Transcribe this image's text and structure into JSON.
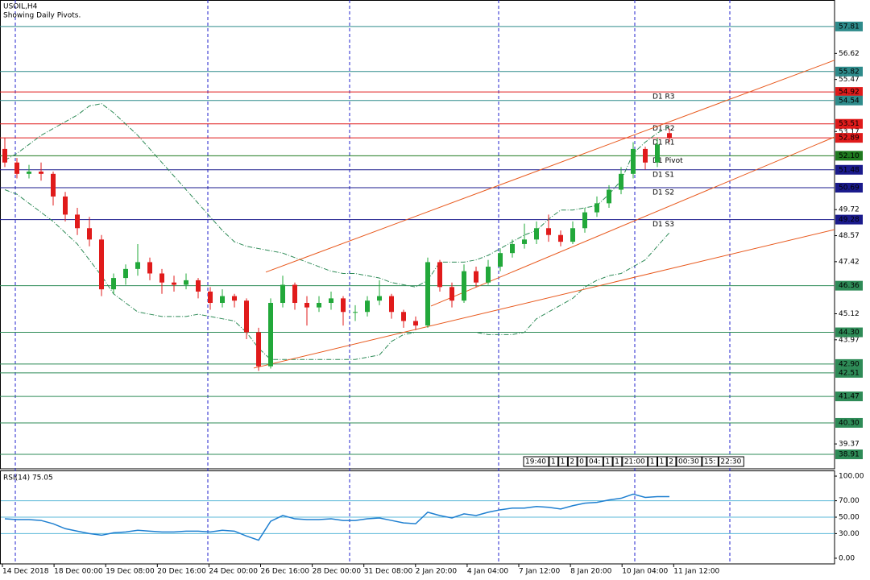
{
  "chart_data": {
    "type": "candlestick",
    "title": "USOIL,H4",
    "subtitle": "Showing Daily Pivots.",
    "ylim": [
      38.27,
      58.98
    ],
    "yticks": [
      56.62,
      55.47,
      53.17,
      49.72,
      48.57,
      47.42,
      45.12,
      43.97,
      39.37
    ],
    "up_color": "#22a83a",
    "down_color": "#e01b1b",
    "candles": [
      [
        52.4,
        52.9,
        51.6,
        51.8
      ],
      [
        51.8,
        52.0,
        51.1,
        51.3
      ],
      [
        51.3,
        51.7,
        51.1,
        51.4
      ],
      [
        51.4,
        51.8,
        51.0,
        51.3
      ],
      [
        51.3,
        51.4,
        49.9,
        50.3
      ],
      [
        50.3,
        50.5,
        49.2,
        49.5
      ],
      [
        49.5,
        49.8,
        48.6,
        48.9
      ],
      [
        48.9,
        49.4,
        48.1,
        48.4
      ],
      [
        48.4,
        48.6,
        45.9,
        46.2
      ],
      [
        46.2,
        46.9,
        46.0,
        46.7
      ],
      [
        46.7,
        47.3,
        46.4,
        47.1
      ],
      [
        47.1,
        48.2,
        46.8,
        47.4
      ],
      [
        47.4,
        47.6,
        46.6,
        46.9
      ],
      [
        46.9,
        47.1,
        46.0,
        46.5
      ],
      [
        46.5,
        46.8,
        46.1,
        46.4
      ],
      [
        46.4,
        46.9,
        46.2,
        46.6
      ],
      [
        46.6,
        46.7,
        45.8,
        46.1
      ],
      [
        46.1,
        46.3,
        45.3,
        45.6
      ],
      [
        45.6,
        46.2,
        45.4,
        45.9
      ],
      [
        45.9,
        46.0,
        45.4,
        45.7
      ],
      [
        45.7,
        45.8,
        44.0,
        44.3
      ],
      [
        44.3,
        44.5,
        42.6,
        42.8
      ],
      [
        42.8,
        45.8,
        42.7,
        45.6
      ],
      [
        45.6,
        46.8,
        45.4,
        46.4
      ],
      [
        46.4,
        46.5,
        45.3,
        45.6
      ],
      [
        45.6,
        45.9,
        44.6,
        45.4
      ],
      [
        45.4,
        45.9,
        45.2,
        45.6
      ],
      [
        45.6,
        46.1,
        45.3,
        45.8
      ],
      [
        45.8,
        45.9,
        44.6,
        45.2
      ],
      [
        45.2,
        45.5,
        44.8,
        45.2
      ],
      [
        45.2,
        45.9,
        45.0,
        45.7
      ],
      [
        45.7,
        46.6,
        45.5,
        45.9
      ],
      [
        45.9,
        46.0,
        44.9,
        45.2
      ],
      [
        45.2,
        45.3,
        44.5,
        44.8
      ],
      [
        44.8,
        45.0,
        44.4,
        44.6
      ],
      [
        44.6,
        47.6,
        44.5,
        47.4
      ],
      [
        47.4,
        47.5,
        46.1,
        46.3
      ],
      [
        46.3,
        46.5,
        45.4,
        45.7
      ],
      [
        45.7,
        47.3,
        45.6,
        47.0
      ],
      [
        47.0,
        47.2,
        46.3,
        46.5
      ],
      [
        46.5,
        47.5,
        46.4,
        47.2
      ],
      [
        47.2,
        48.0,
        47.0,
        47.8
      ],
      [
        47.8,
        48.4,
        47.6,
        48.2
      ],
      [
        48.2,
        49.1,
        48.0,
        48.4
      ],
      [
        48.4,
        49.2,
        48.2,
        48.9
      ],
      [
        48.9,
        49.5,
        48.3,
        48.6
      ],
      [
        48.6,
        48.8,
        48.1,
        48.3
      ],
      [
        48.3,
        49.2,
        48.2,
        48.9
      ],
      [
        48.9,
        49.8,
        48.7,
        49.6
      ],
      [
        49.6,
        50.3,
        49.4,
        50.0
      ],
      [
        50.0,
        50.8,
        49.8,
        50.6
      ],
      [
        50.6,
        51.6,
        50.4,
        51.3
      ],
      [
        51.3,
        52.7,
        51.1,
        52.4
      ],
      [
        52.4,
        52.5,
        51.5,
        51.8
      ],
      [
        51.8,
        52.9,
        51.6,
        52.6
      ],
      [
        53.1,
        53.3,
        52.7,
        52.89
      ]
    ],
    "band_color": "#2e8b57",
    "upper_band": [
      51.9,
      52.2,
      52.6,
      53.0,
      53.3,
      53.6,
      53.9,
      54.3,
      54.4,
      54.0,
      53.5,
      53.0,
      52.4,
      51.8,
      51.2,
      50.6,
      50.0,
      49.4,
      48.8,
      48.3,
      48.1,
      48.0,
      47.9,
      47.8,
      47.6,
      47.4,
      47.2,
      47.0,
      46.9,
      46.9,
      46.8,
      46.7,
      46.5,
      46.4,
      46.3,
      46.6,
      47.4,
      47.4,
      47.4,
      47.5,
      47.7,
      48.0,
      48.3,
      48.6,
      48.8,
      49.3,
      49.7,
      49.7,
      49.8,
      49.9,
      50.4,
      51.0,
      52.2,
      52.7,
      53.1,
      53.4
    ],
    "lower_band": [
      50.6,
      50.4,
      50.0,
      49.6,
      49.2,
      48.7,
      48.2,
      47.5,
      46.8,
      46.0,
      45.6,
      45.2,
      45.1,
      45.0,
      45.0,
      45.0,
      45.1,
      45.0,
      44.9,
      44.8,
      44.3,
      43.6,
      43.1,
      43.1,
      43.1,
      43.1,
      43.1,
      43.1,
      43.1,
      43.1,
      43.2,
      43.3,
      43.9,
      44.2,
      44.3,
      44.3,
      44.3,
      44.3,
      44.3,
      44.3,
      44.2,
      44.2,
      44.2,
      44.3,
      44.9,
      45.2,
      45.5,
      45.8,
      46.3,
      46.6,
      46.8,
      46.9,
      47.2,
      47.5,
      48.1,
      48.7
    ],
    "trendline_color": "#e8581c",
    "trendlines": [
      {
        "points": [
          [
            21.6,
            46.96
          ],
          [
            68.67,
            56.32
          ]
        ]
      },
      {
        "points": [
          [
            35.27,
            45.46
          ],
          [
            68.67,
            52.93
          ]
        ]
      },
      {
        "points": [
          [
            20.6,
            42.72
          ],
          [
            68.67,
            48.84
          ]
        ]
      }
    ],
    "levels": [
      {
        "value": 57.81,
        "color": "#2e8b8b"
      },
      {
        "value": 55.82,
        "color": "#2e8b8b"
      },
      {
        "value": 54.92,
        "color": "#e01b1b",
        "pivot": "D1 R3"
      },
      {
        "value": 54.54,
        "color": "#2e8b8b"
      },
      {
        "value": 53.51,
        "color": "#e01b1b",
        "pivot": "D1 R2"
      },
      {
        "value": 52.89,
        "color": "#e01b1b",
        "pivot": "D1 R1"
      },
      {
        "value": 52.1,
        "label": "52.10",
        "color": "#1f7a1f",
        "pivot": "D1 Pivot"
      },
      {
        "value": 51.48,
        "color": "#1a1a8c",
        "pivot": "D1 S1"
      },
      {
        "value": 50.69,
        "color": "#1a1a8c",
        "pivot": "D1 S2"
      },
      {
        "value": 49.28,
        "color": "#1a1a8c",
        "pivot": "D1 S3"
      },
      {
        "value": 46.36,
        "color": "#2e8b57"
      },
      {
        "value": 44.3,
        "label": "44.30",
        "color": "#2e8b57"
      },
      {
        "value": 42.9,
        "label": "42.90",
        "color": "#2e8b57"
      },
      {
        "value": 42.51,
        "color": "#2e8b57"
      },
      {
        "value": 41.47,
        "color": "#2e8b57"
      },
      {
        "value": 40.3,
        "label": "40.30",
        "color": "#2e8b57"
      },
      {
        "value": 38.91,
        "color": "#2e8b57"
      }
    ],
    "x_tick_labels": [
      "14 Dec 2018",
      "18 Dec 00:00",
      "19 Dec 08:00",
      "20 Dec 16:00",
      "24 Dec 00:00",
      "26 Dec 16:00",
      "28 Dec 00:00",
      "31 Dec 08:00",
      "2 Jan 20:00",
      "4 Jan 04:00",
      "7 Jan 12:00",
      "8 Jan 20:00",
      "10 Jan 04:00",
      "11 Jan 12:00"
    ],
    "time_markers": [
      "19:40",
      "1",
      "1",
      "2",
      "0",
      "04:",
      "1",
      "1",
      "21:00",
      "1",
      "1",
      "2",
      "00:30",
      "15:",
      "22:30"
    ],
    "rsi": {
      "title": "RSI(14) 75.05",
      "color": "#1e7fd0",
      "level_color": "#5bb8d8",
      "ylim": [
        -6.9,
        106.9
      ],
      "yticks": [
        {
          "value": 100,
          "label": "100.00"
        },
        {
          "value": 70,
          "label": "70.00"
        },
        {
          "value": 50,
          "label": "50.00"
        },
        {
          "value": 30,
          "label": "30.00"
        },
        {
          "value": 0,
          "label": "0.00"
        }
      ],
      "levels": [
        70,
        50,
        30
      ],
      "values": [
        48,
        47,
        47,
        46,
        42,
        36,
        33,
        30,
        28,
        31,
        32,
        34,
        33,
        32,
        32,
        33,
        33,
        32,
        34,
        33,
        27,
        22,
        45,
        52,
        48,
        47,
        47,
        48,
        46,
        46,
        48,
        49,
        46,
        43,
        42,
        56,
        52,
        49,
        54,
        52,
        56,
        59,
        61,
        61,
        63,
        62,
        60,
        64,
        67,
        68,
        71,
        73,
        78,
        74,
        75,
        75.05
      ]
    }
  }
}
